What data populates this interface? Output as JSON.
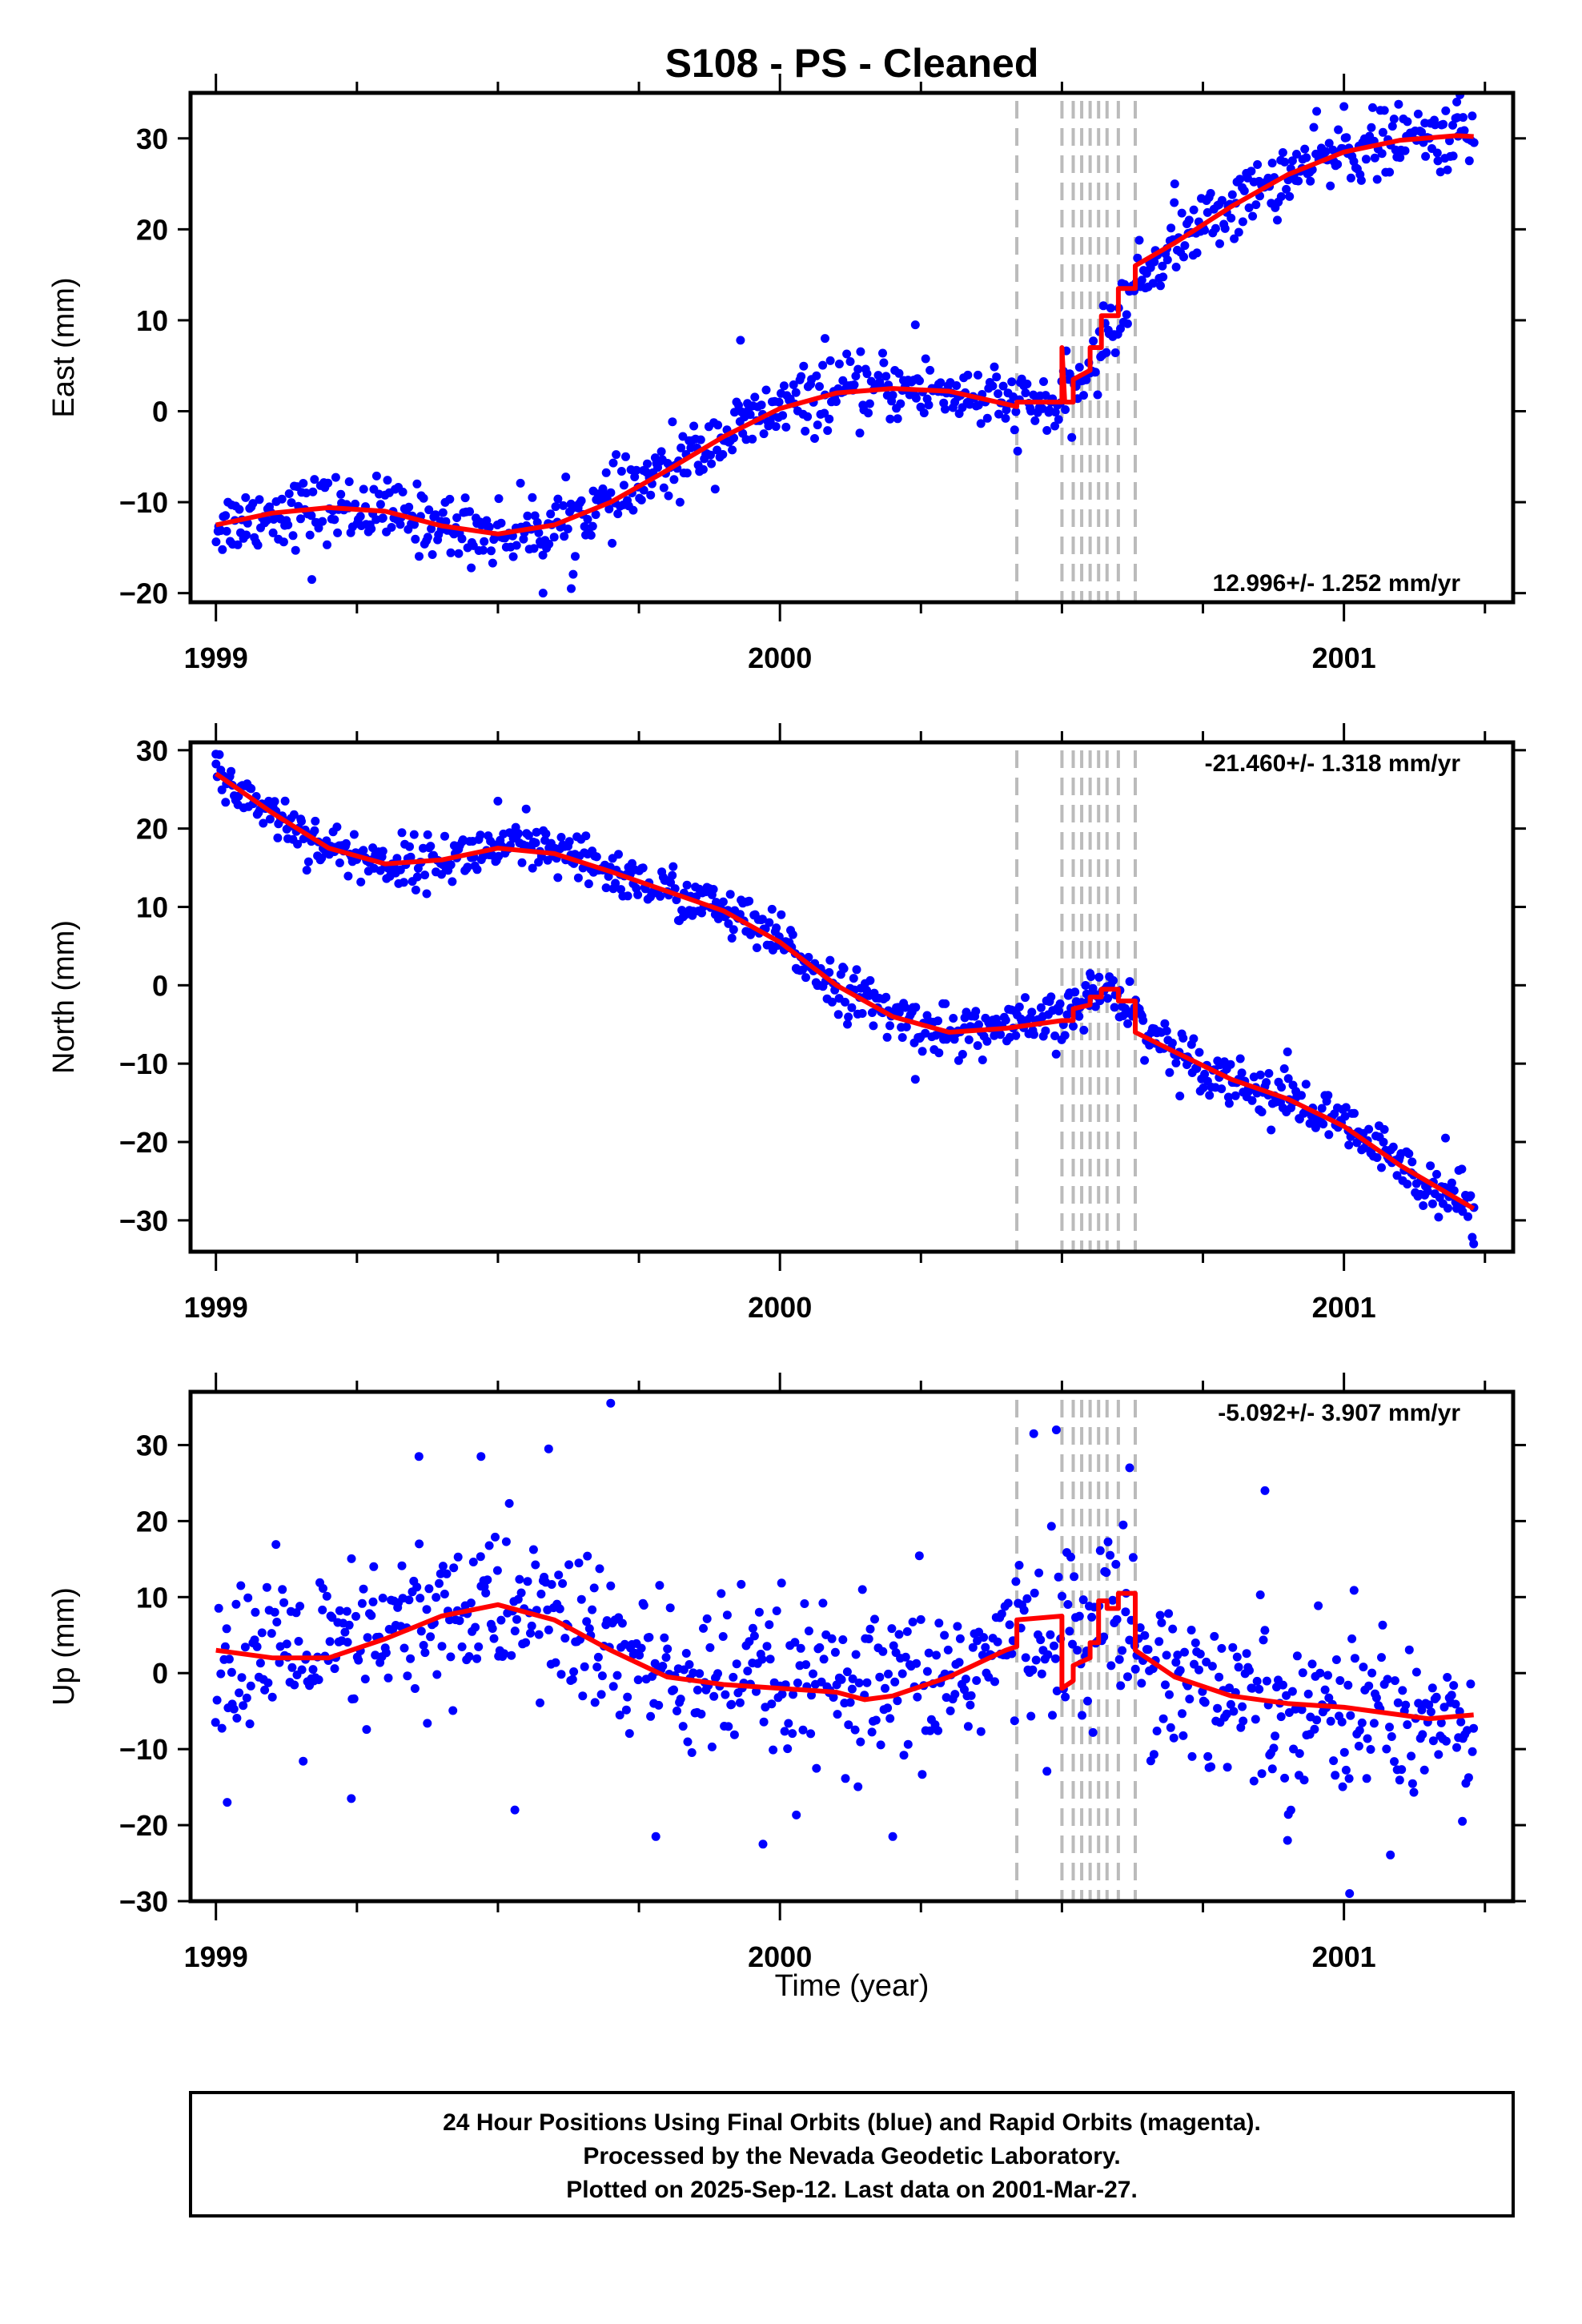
{
  "title": "S108  - PS - Cleaned",
  "xlabel": "Time (year)",
  "footer": {
    "line1": "24 Hour Positions Using Final Orbits (blue) and Rapid Orbits (magenta).",
    "line2": "Processed by the Nevada Geodetic Laboratory.",
    "line3": "Plotted on 2025-Sep-12. Last data on 2001-Mar-27."
  },
  "colors": {
    "points": "#0000ff",
    "model": "#ff0000",
    "breaks": "#bbbbbb"
  },
  "chart_data": [
    {
      "type": "scatter",
      "panel": "east",
      "ylabel": "East (mm)",
      "rate_label": "12.996+/- 1.252 mm/yr",
      "rate_position": "bottom-right",
      "xlim": [
        1998.955,
        2001.3
      ],
      "ylim": [
        -21,
        35
      ],
      "xticks": [
        1999,
        2000,
        2001
      ],
      "xtick_labels": [
        "1999",
        "2000",
        "2001"
      ],
      "yticks": [
        -20,
        -10,
        0,
        10,
        20,
        30
      ],
      "ytick_labels": [
        "−20",
        "−10",
        "0",
        "10",
        "20",
        "30"
      ],
      "breaks": [
        2000.42,
        2000.5,
        2000.52,
        2000.535,
        2000.55,
        2000.565,
        2000.58,
        2000.6,
        2000.63
      ],
      "model": [
        [
          1999.0,
          -12.5
        ],
        [
          1999.1,
          -11.2
        ],
        [
          1999.2,
          -10.6
        ],
        [
          1999.3,
          -11.0
        ],
        [
          1999.4,
          -12.6
        ],
        [
          1999.5,
          -13.5
        ],
        [
          1999.6,
          -12.5
        ],
        [
          1999.7,
          -10.0
        ],
        [
          1999.8,
          -6.5
        ],
        [
          1999.9,
          -2.8
        ],
        [
          2000.0,
          0.3
        ],
        [
          2000.1,
          2.0
        ],
        [
          2000.2,
          2.5
        ],
        [
          2000.3,
          2.2
        ],
        [
          2000.4,
          0.8
        ],
        [
          2000.42,
          0.5
        ],
        [
          2000.42,
          1.0
        ],
        [
          2000.5,
          1.0
        ],
        [
          2000.5,
          7.0
        ],
        [
          2000.505,
          1.0
        ],
        [
          2000.52,
          1.0
        ],
        [
          2000.52,
          3.5
        ],
        [
          2000.55,
          4.5
        ],
        [
          2000.55,
          7.0
        ],
        [
          2000.57,
          7.0
        ],
        [
          2000.57,
          10.5
        ],
        [
          2000.6,
          10.5
        ],
        [
          2000.6,
          13.5
        ],
        [
          2000.63,
          13.5
        ],
        [
          2000.63,
          16.0
        ],
        [
          2000.7,
          18.5
        ],
        [
          2000.8,
          22.5
        ],
        [
          2000.9,
          26.0
        ],
        [
          2001.0,
          28.5
        ],
        [
          2001.1,
          29.8
        ],
        [
          2001.2,
          30.3
        ],
        [
          2001.23,
          30.2
        ]
      ],
      "series": [
        {
          "name": "",
          "noise": 1.8,
          "ctrl": [
            [
              1999.0,
              -12.5
            ],
            [
              1999.1,
              -11.2
            ],
            [
              1999.2,
              -10.6
            ],
            [
              1999.3,
              -11.0
            ],
            [
              1999.4,
              -12.6
            ],
            [
              1999.5,
              -13.5
            ],
            [
              1999.6,
              -12.5
            ],
            [
              1999.7,
              -10.0
            ],
            [
              1999.8,
              -6.5
            ],
            [
              1999.9,
              -2.8
            ],
            [
              2000.0,
              0.3
            ],
            [
              2000.1,
              2.0
            ],
            [
              2000.2,
              2.5
            ],
            [
              2000.3,
              2.2
            ],
            [
              2000.4,
              0.8
            ],
            [
              2000.5,
              0.5
            ],
            [
              2000.55,
              4.5
            ],
            [
              2000.6,
              10.5
            ],
            [
              2000.63,
              14.0
            ],
            [
              2000.7,
              18.5
            ],
            [
              2000.8,
              22.5
            ],
            [
              2000.9,
              26.0
            ],
            [
              2001.0,
              28.5
            ],
            [
              2001.1,
              29.8
            ],
            [
              2001.23,
              30.3
            ]
          ],
          "outliers": [
            [
              1999.17,
              -18.5
            ],
            [
              1999.58,
              -20.0
            ],
            [
              1999.63,
              -19.5
            ],
            [
              1999.93,
              7.8
            ],
            [
              2000.08,
              8.0
            ],
            [
              2000.24,
              9.5
            ],
            [
              2000.7,
              25.0
            ],
            [
              2001.0,
              33.5
            ],
            [
              2001.2,
              34.0
            ]
          ]
        }
      ]
    },
    {
      "type": "scatter",
      "panel": "north",
      "ylabel": "North (mm)",
      "rate_label": "-21.460+/- 1.318 mm/yr",
      "rate_position": "top-right",
      "xlim": [
        1998.955,
        2001.3
      ],
      "ylim": [
        -34,
        31
      ],
      "xticks": [
        1999,
        2000,
        2001
      ],
      "xtick_labels": [
        "1999",
        "2000",
        "2001"
      ],
      "yticks": [
        -30,
        -20,
        -10,
        0,
        10,
        20,
        30
      ],
      "ytick_labels": [
        "−30",
        "−20",
        "−10",
        "0",
        "10",
        "20",
        "30"
      ],
      "breaks": [
        2000.42,
        2000.5,
        2000.52,
        2000.535,
        2000.55,
        2000.565,
        2000.58,
        2000.6,
        2000.63
      ],
      "model": [
        [
          1999.0,
          27.0
        ],
        [
          1999.1,
          22.0
        ],
        [
          1999.2,
          17.5
        ],
        [
          1999.3,
          15.5
        ],
        [
          1999.4,
          16.0
        ],
        [
          1999.5,
          17.5
        ],
        [
          1999.6,
          16.8
        ],
        [
          1999.7,
          14.5
        ],
        [
          1999.8,
          12.0
        ],
        [
          1999.9,
          9.5
        ],
        [
          2000.0,
          5.5
        ],
        [
          2000.1,
          0.0
        ],
        [
          2000.2,
          -4.0
        ],
        [
          2000.3,
          -6.0
        ],
        [
          2000.4,
          -5.5
        ],
        [
          2000.5,
          -4.5
        ],
        [
          2000.52,
          -4.5
        ],
        [
          2000.52,
          -3.0
        ],
        [
          2000.55,
          -2.5
        ],
        [
          2000.55,
          -1.5
        ],
        [
          2000.57,
          -1.5
        ],
        [
          2000.57,
          -0.5
        ],
        [
          2000.6,
          -0.5
        ],
        [
          2000.6,
          -2.0
        ],
        [
          2000.63,
          -2.0
        ],
        [
          2000.63,
          -6.0
        ],
        [
          2000.7,
          -8.5
        ],
        [
          2000.8,
          -12.0
        ],
        [
          2000.9,
          -14.5
        ],
        [
          2001.0,
          -18.0
        ],
        [
          2001.1,
          -23.0
        ],
        [
          2001.23,
          -28.5
        ]
      ],
      "series": [
        {
          "name": "",
          "noise": 1.6,
          "ctrl": [
            [
              1999.0,
              27.0
            ],
            [
              1999.1,
              22.0
            ],
            [
              1999.2,
              17.5
            ],
            [
              1999.3,
              15.5
            ],
            [
              1999.4,
              16.0
            ],
            [
              1999.5,
              17.5
            ],
            [
              1999.6,
              16.8
            ],
            [
              1999.7,
              14.5
            ],
            [
              1999.8,
              12.0
            ],
            [
              1999.9,
              9.5
            ],
            [
              2000.0,
              5.5
            ],
            [
              2000.1,
              0.0
            ],
            [
              2000.2,
              -4.0
            ],
            [
              2000.3,
              -6.0
            ],
            [
              2000.4,
              -5.5
            ],
            [
              2000.5,
              -4.5
            ],
            [
              2000.55,
              -1.5
            ],
            [
              2000.6,
              -0.5
            ],
            [
              2000.63,
              -4.0
            ],
            [
              2000.7,
              -8.5
            ],
            [
              2000.8,
              -12.0
            ],
            [
              2000.9,
              -14.5
            ],
            [
              2001.0,
              -18.0
            ],
            [
              2001.1,
              -23.0
            ],
            [
              2001.23,
              -28.5
            ]
          ],
          "outliers": [
            [
              1999.0,
              29.5
            ],
            [
              1999.5,
              23.5
            ],
            [
              1999.55,
              22.5
            ],
            [
              2000.24,
              -12.0
            ],
            [
              2000.55,
              1.5
            ],
            [
              2000.9,
              -8.5
            ],
            [
              2001.18,
              -19.5
            ],
            [
              2001.23,
              -33.0
            ]
          ]
        }
      ]
    },
    {
      "type": "scatter",
      "panel": "up",
      "ylabel": "Up (mm)",
      "rate_label": "-5.092+/- 3.907 mm/yr",
      "rate_position": "top-right",
      "xlim": [
        1998.955,
        2001.3
      ],
      "ylim": [
        -30,
        37
      ],
      "xticks": [
        1999,
        2000,
        2001
      ],
      "xtick_labels": [
        "1999",
        "2000",
        "2001"
      ],
      "yticks": [
        -30,
        -20,
        -10,
        0,
        10,
        20,
        30
      ],
      "ytick_labels": [
        "−30",
        "−20",
        "−10",
        "0",
        "10",
        "20",
        "30"
      ],
      "breaks": [
        2000.42,
        2000.5,
        2000.52,
        2000.535,
        2000.55,
        2000.565,
        2000.58,
        2000.6,
        2000.63
      ],
      "model": [
        [
          1999.0,
          3.0
        ],
        [
          1999.1,
          2.0
        ],
        [
          1999.2,
          2.0
        ],
        [
          1999.3,
          4.5
        ],
        [
          1999.4,
          7.5
        ],
        [
          1999.5,
          9.0
        ],
        [
          1999.6,
          7.0
        ],
        [
          1999.7,
          3.0
        ],
        [
          1999.8,
          -0.5
        ],
        [
          1999.9,
          -1.5
        ],
        [
          2000.0,
          -2.0
        ],
        [
          2000.1,
          -2.5
        ],
        [
          2000.15,
          -3.5
        ],
        [
          2000.2,
          -3.0
        ],
        [
          2000.3,
          -0.5
        ],
        [
          2000.4,
          3.0
        ],
        [
          2000.42,
          3.5
        ],
        [
          2000.42,
          7.0
        ],
        [
          2000.5,
          7.5
        ],
        [
          2000.5,
          -2.0
        ],
        [
          2000.52,
          -1.0
        ],
        [
          2000.52,
          1.0
        ],
        [
          2000.55,
          2.0
        ],
        [
          2000.55,
          4.0
        ],
        [
          2000.565,
          4.0
        ],
        [
          2000.565,
          9.5
        ],
        [
          2000.58,
          9.5
        ],
        [
          2000.58,
          8.5
        ],
        [
          2000.6,
          8.5
        ],
        [
          2000.6,
          10.5
        ],
        [
          2000.63,
          10.5
        ],
        [
          2000.63,
          3.0
        ],
        [
          2000.7,
          -0.5
        ],
        [
          2000.8,
          -3.0
        ],
        [
          2000.9,
          -4.0
        ],
        [
          2001.0,
          -4.5
        ],
        [
          2001.1,
          -5.5
        ],
        [
          2001.15,
          -6.0
        ],
        [
          2001.23,
          -5.5
        ]
      ],
      "series": [
        {
          "name": "",
          "noise": 5.5,
          "ctrl": [
            [
              1999.0,
              3.0
            ],
            [
              1999.1,
              2.0
            ],
            [
              1999.2,
              2.0
            ],
            [
              1999.3,
              4.5
            ],
            [
              1999.4,
              7.5
            ],
            [
              1999.5,
              9.0
            ],
            [
              1999.6,
              7.0
            ],
            [
              1999.7,
              3.0
            ],
            [
              1999.8,
              -0.5
            ],
            [
              1999.9,
              -1.5
            ],
            [
              2000.0,
              -2.0
            ],
            [
              2000.1,
              -2.5
            ],
            [
              2000.15,
              -3.5
            ],
            [
              2000.2,
              -3.0
            ],
            [
              2000.3,
              -0.5
            ],
            [
              2000.42,
              4.0
            ],
            [
              2000.5,
              6.0
            ],
            [
              2000.55,
              5.0
            ],
            [
              2000.6,
              9.0
            ],
            [
              2000.63,
              5.0
            ],
            [
              2000.7,
              -0.5
            ],
            [
              2000.8,
              -3.0
            ],
            [
              2000.9,
              -4.0
            ],
            [
              2001.0,
              -4.5
            ],
            [
              2001.1,
              -5.5
            ],
            [
              2001.23,
              -5.5
            ]
          ],
          "outliers": [
            [
              1999.7,
              35.5
            ],
            [
              1999.59,
              29.5
            ],
            [
              1999.47,
              28.5
            ],
            [
              1999.36,
              28.5
            ],
            [
              2000.45,
              31.5
            ],
            [
              2000.49,
              32.0
            ],
            [
              2000.62,
              27.0
            ],
            [
              2000.86,
              24.0
            ],
            [
              1999.78,
              -21.5
            ],
            [
              1999.97,
              -22.5
            ],
            [
              2000.2,
              -21.5
            ],
            [
              2000.9,
              -22.0
            ],
            [
              2001.01,
              -29.0
            ],
            [
              2001.21,
              -19.5
            ],
            [
              1999.53,
              -18.0
            ],
            [
              1999.02,
              -17.0
            ],
            [
              1999.24,
              -16.5
            ]
          ]
        }
      ]
    }
  ]
}
